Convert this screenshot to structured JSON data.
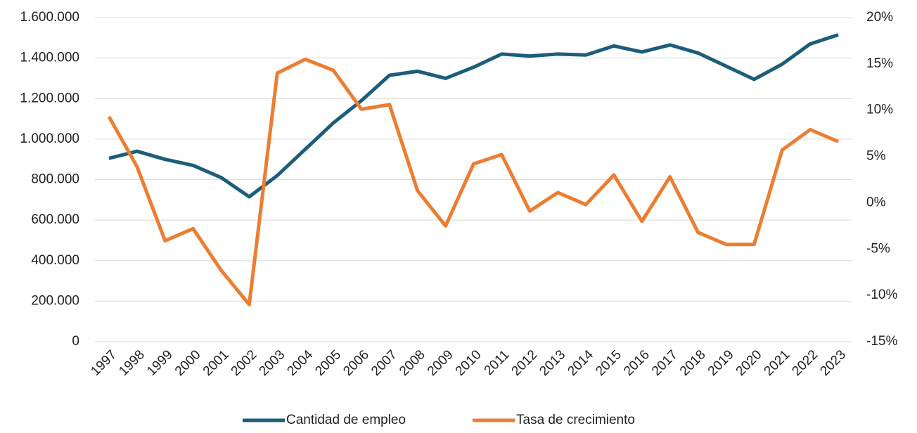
{
  "chart_data": {
    "type": "line",
    "categories": [
      "1997",
      "1998",
      "1999",
      "2000",
      "2001",
      "2002",
      "2003",
      "2004",
      "2005",
      "2006",
      "2007",
      "2008",
      "2009",
      "2010",
      "2011",
      "2012",
      "2013",
      "2014",
      "2015",
      "2016",
      "2017",
      "2018",
      "2019",
      "2020",
      "2021",
      "2022",
      "2023"
    ],
    "series": [
      {
        "name": "Cantidad de empleo",
        "color": "#1c5d7c",
        "axis": "y",
        "values": [
          905000,
          940000,
          900000,
          870000,
          810000,
          715000,
          820000,
          950000,
          1080000,
          1190000,
          1315000,
          1335000,
          1300000,
          1355000,
          1420000,
          1410000,
          1420000,
          1415000,
          1460000,
          1430000,
          1465000,
          1425000,
          1360000,
          1295000,
          1370000,
          1470000,
          1515000
        ]
      },
      {
        "name": "Tasa de crecimiento",
        "color": "#ed7d31",
        "axis": "y2",
        "values": [
          9.3,
          3.9,
          -4.1,
          -2.8,
          -7.3,
          -11.0,
          14.0,
          15.5,
          14.3,
          10.1,
          10.6,
          1.3,
          -2.5,
          4.2,
          5.2,
          -0.9,
          1.1,
          -0.2,
          3.0,
          -2.0,
          2.8,
          -3.2,
          -4.5,
          -4.5,
          5.7,
          7.9,
          6.6
        ]
      }
    ],
    "ylim": [
      0,
      1600000
    ],
    "yticks": [
      0,
      {
        "value": 200000,
        "label": "200.000"
      },
      {
        "value": 400000,
        "label": "400.000"
      },
      {
        "value": 600000,
        "label": "600.000"
      },
      {
        "value": 800000,
        "label": "800.000"
      },
      {
        "value": 1000000,
        "label": "1.000.000"
      },
      {
        "value": 1200000,
        "label": "1.200.000"
      },
      {
        "value": 1400000,
        "label": "1.400.000"
      },
      {
        "value": 1600000,
        "label": "1.600.000"
      }
    ],
    "y2lim": [
      -15,
      20
    ],
    "y2ticks": [
      {
        "value": -15,
        "label": "-15%"
      },
      {
        "value": -10,
        "label": "-10%"
      },
      {
        "value": -5,
        "label": "-5%"
      },
      {
        "value": 0,
        "label": "0%"
      },
      {
        "value": 5,
        "label": "5%"
      },
      {
        "value": 10,
        "label": "10%"
      },
      {
        "value": 15,
        "label": "15%"
      },
      {
        "value": 20,
        "label": "20%"
      }
    ],
    "grid": true,
    "legend": "bottom"
  }
}
